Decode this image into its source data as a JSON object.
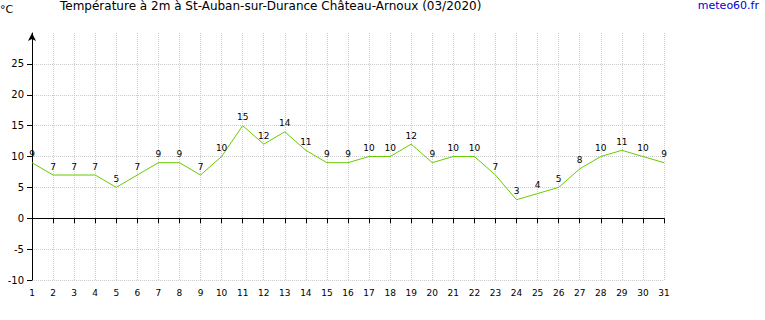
{
  "chart_data": {
    "type": "line",
    "title": "Température à 2m à St-Auban-sur-Durance Château-Arnoux (03/2020)",
    "y_label": "°C",
    "source": "meteo60.fr",
    "categories": [
      "1",
      "2",
      "3",
      "4",
      "5",
      "6",
      "7",
      "8",
      "9",
      "10",
      "11",
      "12",
      "13",
      "14",
      "15",
      "16",
      "17",
      "18",
      "19",
      "20",
      "21",
      "22",
      "23",
      "24",
      "25",
      "26",
      "27",
      "28",
      "29",
      "30",
      "31"
    ],
    "values": [
      9,
      7,
      7,
      7,
      5,
      7,
      9,
      9,
      7,
      10,
      15,
      12,
      14,
      11,
      9,
      9,
      10,
      10,
      12,
      9,
      10,
      10,
      7,
      3,
      4,
      5,
      8,
      10,
      11,
      10,
      9
    ],
    "color": "#66cc00",
    "ylim": [
      -10,
      30
    ],
    "yticks": [
      -10,
      -5,
      0,
      5,
      10,
      15,
      20,
      25
    ],
    "grid": true,
    "data_labels": true
  }
}
